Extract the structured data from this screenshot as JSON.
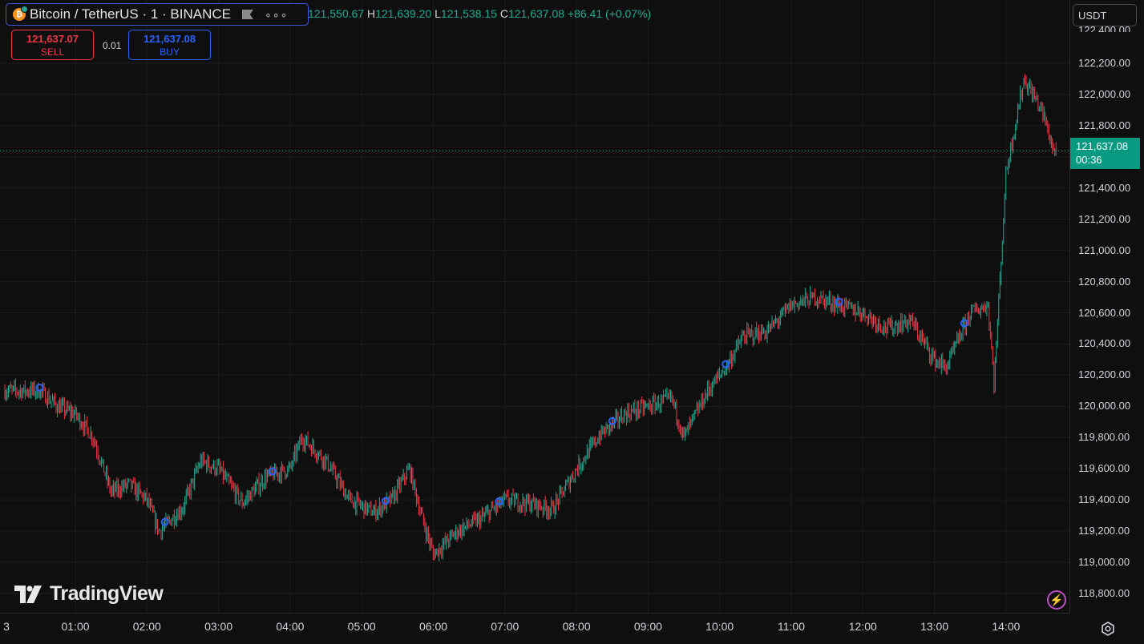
{
  "header": {
    "symbol_title": "Bitcoin / TetherUS · 1 · BINANCE",
    "coin_glyph": "₿",
    "ohlc": {
      "open_prefix": "",
      "open": "121,550.67",
      "high_label": "H",
      "high": "121,639.20",
      "low_label": "L",
      "low": "121,538.15",
      "close_label": "C",
      "close": "121,637.08",
      "change": "+86.41 (+0.07%)"
    }
  },
  "trade": {
    "sell_price": "121,637.07",
    "sell_label": "SELL",
    "spread": "0.01",
    "buy_price": "121,637.08",
    "buy_label": "BUY"
  },
  "currency": "USDT",
  "price_axis": {
    "top_partial": "122,400.00",
    "ticks": [
      "122,200.00",
      "122,000.00",
      "121,800.00",
      "121,600.00",
      "121,400.00",
      "121,200.00",
      "121,000.00",
      "120,800.00",
      "120,600.00",
      "120,400.00",
      "120,200.00",
      "120,000.00",
      "119,800.00",
      "119,600.00",
      "119,400.00",
      "119,200.00",
      "119,000.00",
      "118,800.00"
    ],
    "current_price": "121,637.08",
    "countdown": "00:36"
  },
  "time_axis": {
    "left_partial": "3",
    "ticks": [
      "01:00",
      "02:00",
      "03:00",
      "04:00",
      "05:00",
      "06:00",
      "07:00",
      "08:00",
      "09:00",
      "10:00",
      "11:00",
      "12:00",
      "13:00",
      "14:00"
    ]
  },
  "logo_text": "TradingView",
  "colors": {
    "up": "#22ab94",
    "down": "#f23645",
    "marker": "#2962ff",
    "last_price_bg": "#089981"
  },
  "chart_data": {
    "type": "candlestick",
    "symbol": "BTCUSDT",
    "interval": "1",
    "ylim": [
      118700,
      122420
    ],
    "x_ticks": [
      "01:00",
      "02:00",
      "03:00",
      "04:00",
      "05:00",
      "06:00",
      "07:00",
      "08:00",
      "09:00",
      "10:00",
      "11:00",
      "12:00",
      "13:00",
      "14:00"
    ],
    "approx_close_path": {
      "times": [
        "00:30",
        "00:45",
        "01:00",
        "01:15",
        "01:30",
        "01:45",
        "02:00",
        "02:10",
        "02:30",
        "02:45",
        "03:00",
        "03:20",
        "03:40",
        "04:00",
        "04:10",
        "04:30",
        "04:50",
        "05:10",
        "05:25",
        "05:40",
        "05:50",
        "06:00",
        "06:20",
        "06:40",
        "07:00",
        "07:20",
        "07:40",
        "08:00",
        "08:20",
        "08:40",
        "09:00",
        "09:20",
        "09:30",
        "09:50",
        "10:05",
        "10:20",
        "10:40",
        "11:00",
        "11:20",
        "11:40",
        "12:00",
        "12:20",
        "12:40",
        "13:00",
        "13:10",
        "13:30",
        "13:45",
        "13:50",
        "14:00",
        "14:15",
        "14:30",
        "14:40"
      ],
      "values": [
        120100,
        120000,
        119950,
        119800,
        119450,
        119500,
        119400,
        119200,
        119350,
        119650,
        119600,
        119380,
        119550,
        119600,
        119800,
        119650,
        119400,
        119320,
        119400,
        119600,
        119300,
        119050,
        119200,
        119280,
        119400,
        119380,
        119340,
        119600,
        119820,
        119950,
        120000,
        120050,
        119800,
        120100,
        120250,
        120450,
        120480,
        120650,
        120700,
        120650,
        120600,
        120500,
        120550,
        120300,
        120250,
        120600,
        120650,
        120150,
        121500,
        122100,
        121900,
        121637
      ]
    },
    "last_price": 121637.08,
    "markers": [
      "00:30",
      "02:15",
      "03:45",
      "05:20",
      "06:55",
      "08:30",
      "10:05",
      "11:40",
      "13:25"
    ]
  }
}
